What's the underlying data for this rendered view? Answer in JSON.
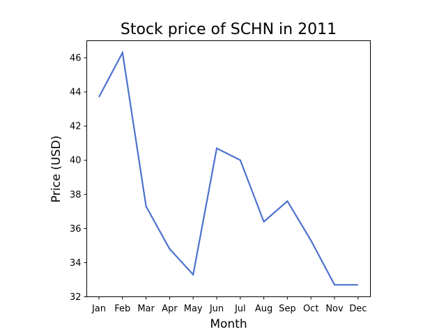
{
  "chart_data": {
    "type": "line",
    "title": "Stock price of SCHN in 2011",
    "xlabel": "Month",
    "ylabel": "Price (USD)",
    "categories": [
      "Jan",
      "Feb",
      "Mar",
      "Apr",
      "May",
      "Jun",
      "Jul",
      "Aug",
      "Sep",
      "Oct",
      "Nov",
      "Dec"
    ],
    "series": [
      {
        "values": [
          43.7,
          46.3,
          37.3,
          34.8,
          33.3,
          40.7,
          40.0,
          36.4,
          37.6,
          35.3,
          32.7,
          32.7
        ],
        "color": "#4C72CC"
      }
    ],
    "ylim": [
      32,
      47
    ],
    "yticks": [
      "32",
      "34",
      "36",
      "38",
      "40",
      "42",
      "44",
      "46"
    ],
    "grid": false,
    "legend": "none"
  }
}
